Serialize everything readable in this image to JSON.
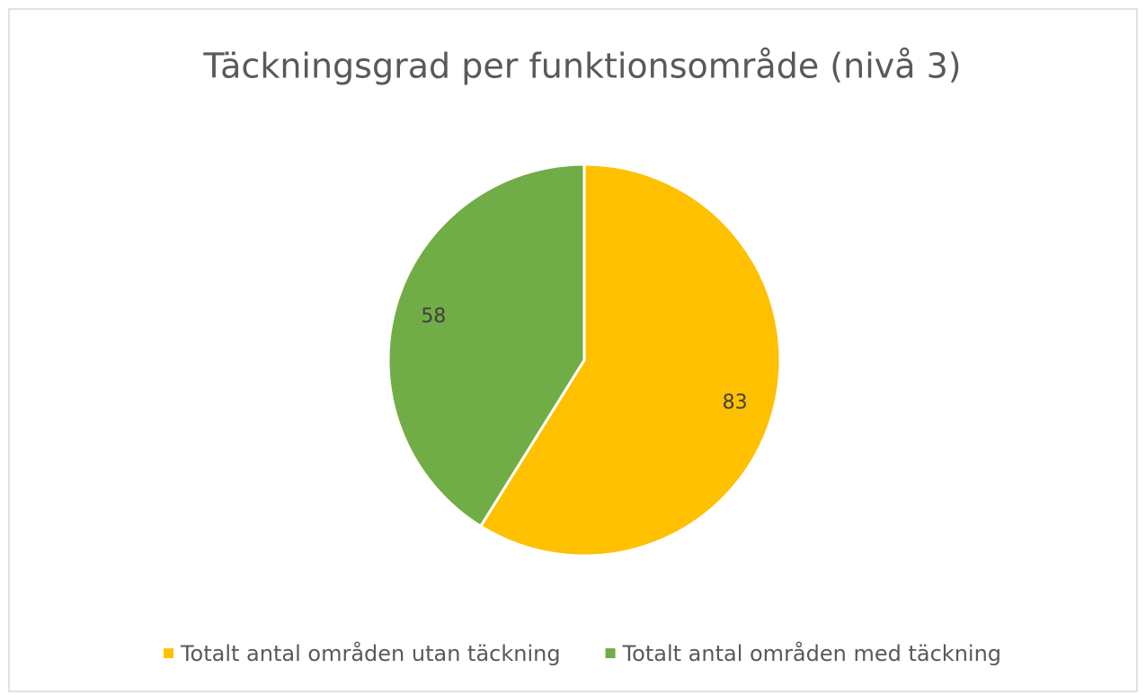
{
  "chart_data": {
    "type": "pie",
    "title": "Täckningsgrad per funktionsområde (nivå 3)",
    "categories": [
      "Totalt antal områden utan täckning",
      "Totalt antal områden med täckning"
    ],
    "values": [
      83,
      58
    ],
    "colors": [
      "#FFC000",
      "#70AD47"
    ]
  }
}
